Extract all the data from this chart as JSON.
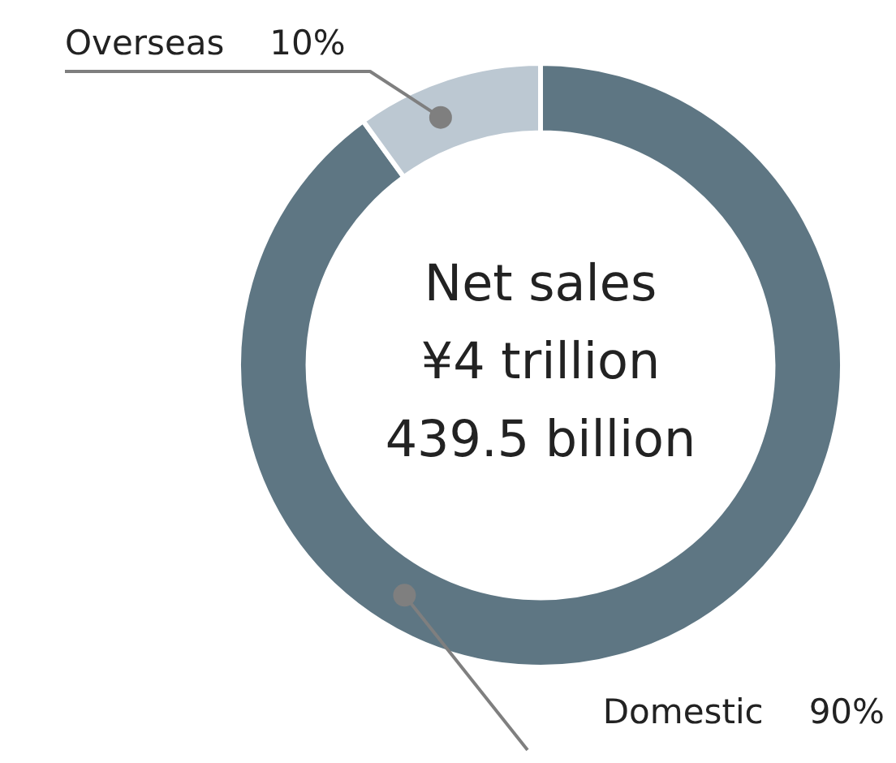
{
  "chart_data": {
    "type": "donut",
    "categories": [
      "Domestic",
      "Overseas"
    ],
    "values": [
      90,
      10
    ],
    "colors": [
      "#5e7683",
      "#bcc8d2"
    ],
    "value_labels": [
      "90%",
      "10%"
    ],
    "annotations": [
      "Net sales",
      "¥4 trillion",
      "439.5 billion"
    ],
    "legend": false
  }
}
